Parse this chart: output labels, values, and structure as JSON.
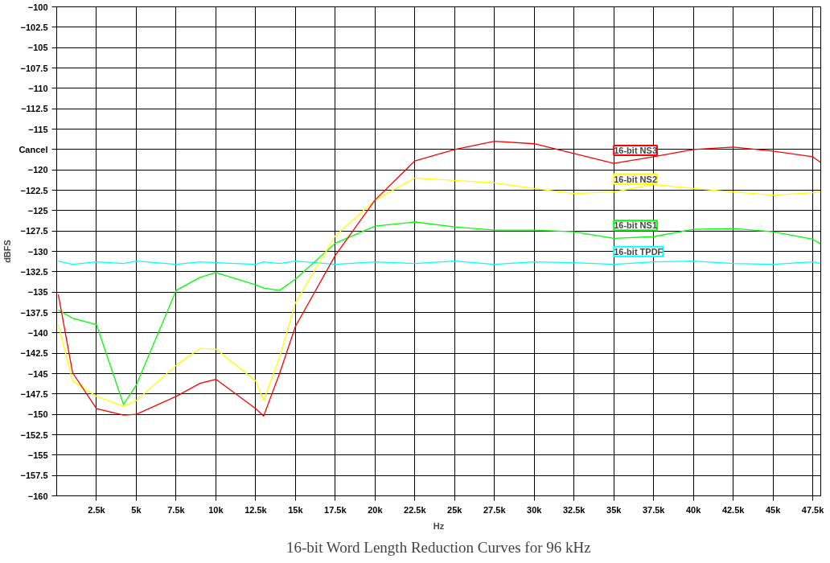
{
  "chart_data": {
    "type": "line",
    "title": "16-bit Word Length Reduction Curves for 96 kHz",
    "xlabel": "Hz",
    "ylabel": "dBFS",
    "xlim": [
      0,
      48000
    ],
    "ylim": [
      -160,
      -100
    ],
    "xticks": [
      {
        "value": 2500,
        "label": "2.5k"
      },
      {
        "value": 5000,
        "label": "5k"
      },
      {
        "value": 7500,
        "label": "7.5k"
      },
      {
        "value": 10000,
        "label": "10k"
      },
      {
        "value": 12500,
        "label": "12.5k"
      },
      {
        "value": 15000,
        "label": "15k"
      },
      {
        "value": 17500,
        "label": "17.5k"
      },
      {
        "value": 20000,
        "label": "20k"
      },
      {
        "value": 22500,
        "label": "22.5k"
      },
      {
        "value": 25000,
        "label": "25k"
      },
      {
        "value": 27500,
        "label": "27.5k"
      },
      {
        "value": 30000,
        "label": "30k"
      },
      {
        "value": 32500,
        "label": "32.5k"
      },
      {
        "value": 35000,
        "label": "35k"
      },
      {
        "value": 37500,
        "label": "37.5k"
      },
      {
        "value": 40000,
        "label": "40k"
      },
      {
        "value": 42500,
        "label": "42.5k"
      },
      {
        "value": 45000,
        "label": "45k"
      },
      {
        "value": 47500,
        "label": "47.5k"
      }
    ],
    "yticks": [
      -160,
      -157.5,
      -155,
      -152.5,
      -150,
      -147.5,
      -145,
      -142.5,
      -140,
      -137.5,
      -135,
      -132.5,
      -130,
      -127.5,
      -125,
      -122.5,
      -120,
      {
        "value": -117.5,
        "label": "Cancel"
      },
      -115,
      -112.5,
      -110,
      -107.5,
      -105,
      -102.5,
      -100
    ],
    "grid": true,
    "line_style": "solid",
    "marker": "none",
    "x": [
      100,
      1000,
      2500,
      4200,
      5000,
      7500,
      9000,
      10000,
      12500,
      13000,
      14000,
      15000,
      17500,
      20000,
      22500,
      25000,
      27500,
      30000,
      32500,
      35000,
      37500,
      40000,
      42500,
      45000,
      47500,
      48000
    ],
    "series": [
      {
        "name": "16-bit TPDF",
        "color": "#00ffff",
        "values": [
          -131.2,
          -131.6,
          -131.3,
          -131.5,
          -131.2,
          -131.6,
          -131.3,
          -131.4,
          -131.6,
          -131.3,
          -131.5,
          -131.2,
          -131.6,
          -131.3,
          -131.5,
          -131.2,
          -131.6,
          -131.3,
          -131.4,
          -131.6,
          -131.3,
          -131.2,
          -131.5,
          -131.6,
          -131.3,
          -131.5
        ]
      },
      {
        "name": "16-bit NS1",
        "color": "#00ff00",
        "values": [
          -137.2,
          -138.2,
          -139,
          -148.8,
          -146.4,
          -134.8,
          -133.2,
          -132.6,
          -134.1,
          -134.5,
          -134.8,
          -133.4,
          -129,
          -126.9,
          -126.4,
          -127,
          -127.4,
          -127.4,
          -127.6,
          -128.4,
          -128.2,
          -127.3,
          -127.2,
          -127.6,
          -128.5,
          -129.1
        ]
      },
      {
        "name": "16-bit NS2",
        "color": "#ffff00",
        "values": [
          -139,
          -145.9,
          -147.8,
          -149,
          -148.3,
          -144,
          -141.9,
          -142,
          -145.9,
          -148.3,
          -143,
          -136.3,
          -128.1,
          -123.7,
          -121,
          -121.3,
          -121.6,
          -122.3,
          -122.9,
          -122.7,
          -121.8,
          -122.3,
          -122.7,
          -123.1,
          -122.8,
          -122.7
        ]
      },
      {
        "name": "16-bit NS3",
        "color": "#ff0000",
        "values": [
          -135.3,
          -144.9,
          -149.3,
          -150.1,
          -150,
          -147.8,
          -146.2,
          -145.7,
          -149.3,
          -150.2,
          -145,
          -139.2,
          -130.5,
          -123.7,
          -118.9,
          -117.5,
          -116.5,
          -116.8,
          -118,
          -119.2,
          -118.4,
          -117.5,
          -117.2,
          -117.7,
          -118.4,
          -119.1
        ]
      }
    ]
  }
}
